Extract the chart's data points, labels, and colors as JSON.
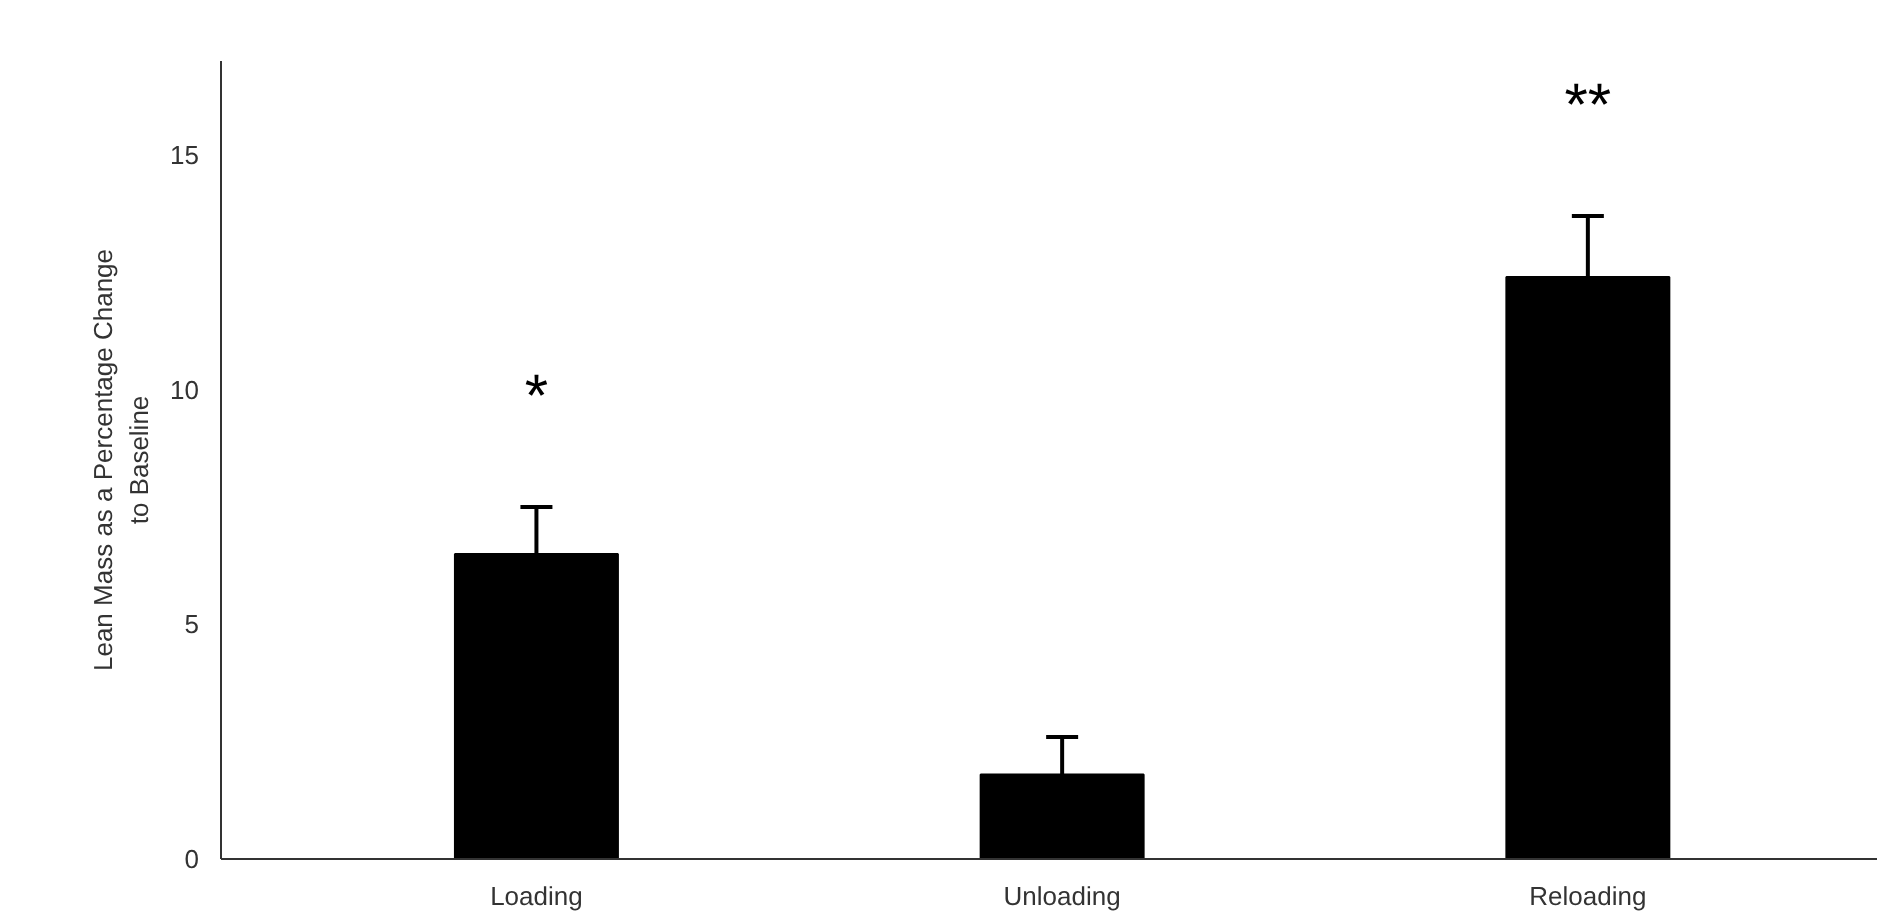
{
  "chart_data": {
    "type": "bar",
    "ylabel": "Lean Mass as a Percentage Change\nto Baseline",
    "categories": [
      "Loading",
      "Unloading",
      "Reloading"
    ],
    "values": [
      6.5,
      1.8,
      12.4
    ],
    "errors": [
      [
        6.5,
        7.5
      ],
      [
        1.8,
        2.6
      ],
      [
        12.4,
        13.7
      ]
    ],
    "color": "#000000",
    "ylim": [
      0,
      17
    ],
    "yticks": [
      0,
      5,
      10,
      15
    ],
    "grid": false,
    "annotations": [
      "*",
      "**"
    ]
  }
}
